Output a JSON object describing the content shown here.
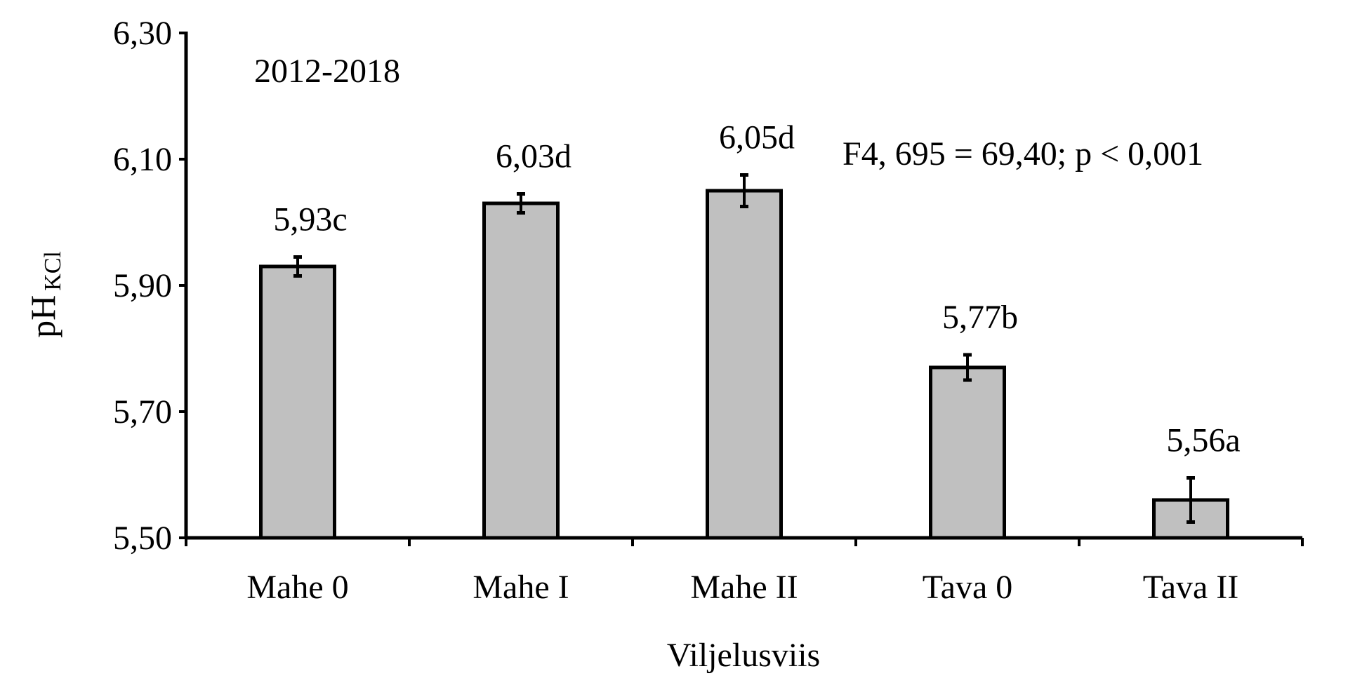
{
  "chart_data": {
    "type": "bar",
    "title": "",
    "period_label": "2012-2018",
    "stat_annotation": "F4, 695 = 69,40; p < 0,001",
    "xlabel": "Viljelusviis",
    "ylabel_main": "pH",
    "ylabel_sub": "KCl",
    "categories": [
      "Mahe 0",
      "Mahe I",
      "Mahe II",
      "Tava 0",
      "Tava II"
    ],
    "values": [
      5.93,
      6.03,
      6.05,
      5.77,
      5.56
    ],
    "errors": [
      0.015,
      0.015,
      0.025,
      0.02,
      0.035
    ],
    "data_labels": [
      "5,93c",
      "6,03d",
      "6,05d",
      "5,77b",
      "5,56a"
    ],
    "ylim": [
      5.5,
      6.3
    ],
    "yticks": [
      5.5,
      5.7,
      5.9,
      6.1,
      6.3
    ],
    "ytick_labels": [
      "5,50",
      "5,70",
      "5,90",
      "6,10",
      "6,30"
    ],
    "grid": false,
    "bar_color": "#c0c0c0",
    "edge_color": "#000000"
  }
}
